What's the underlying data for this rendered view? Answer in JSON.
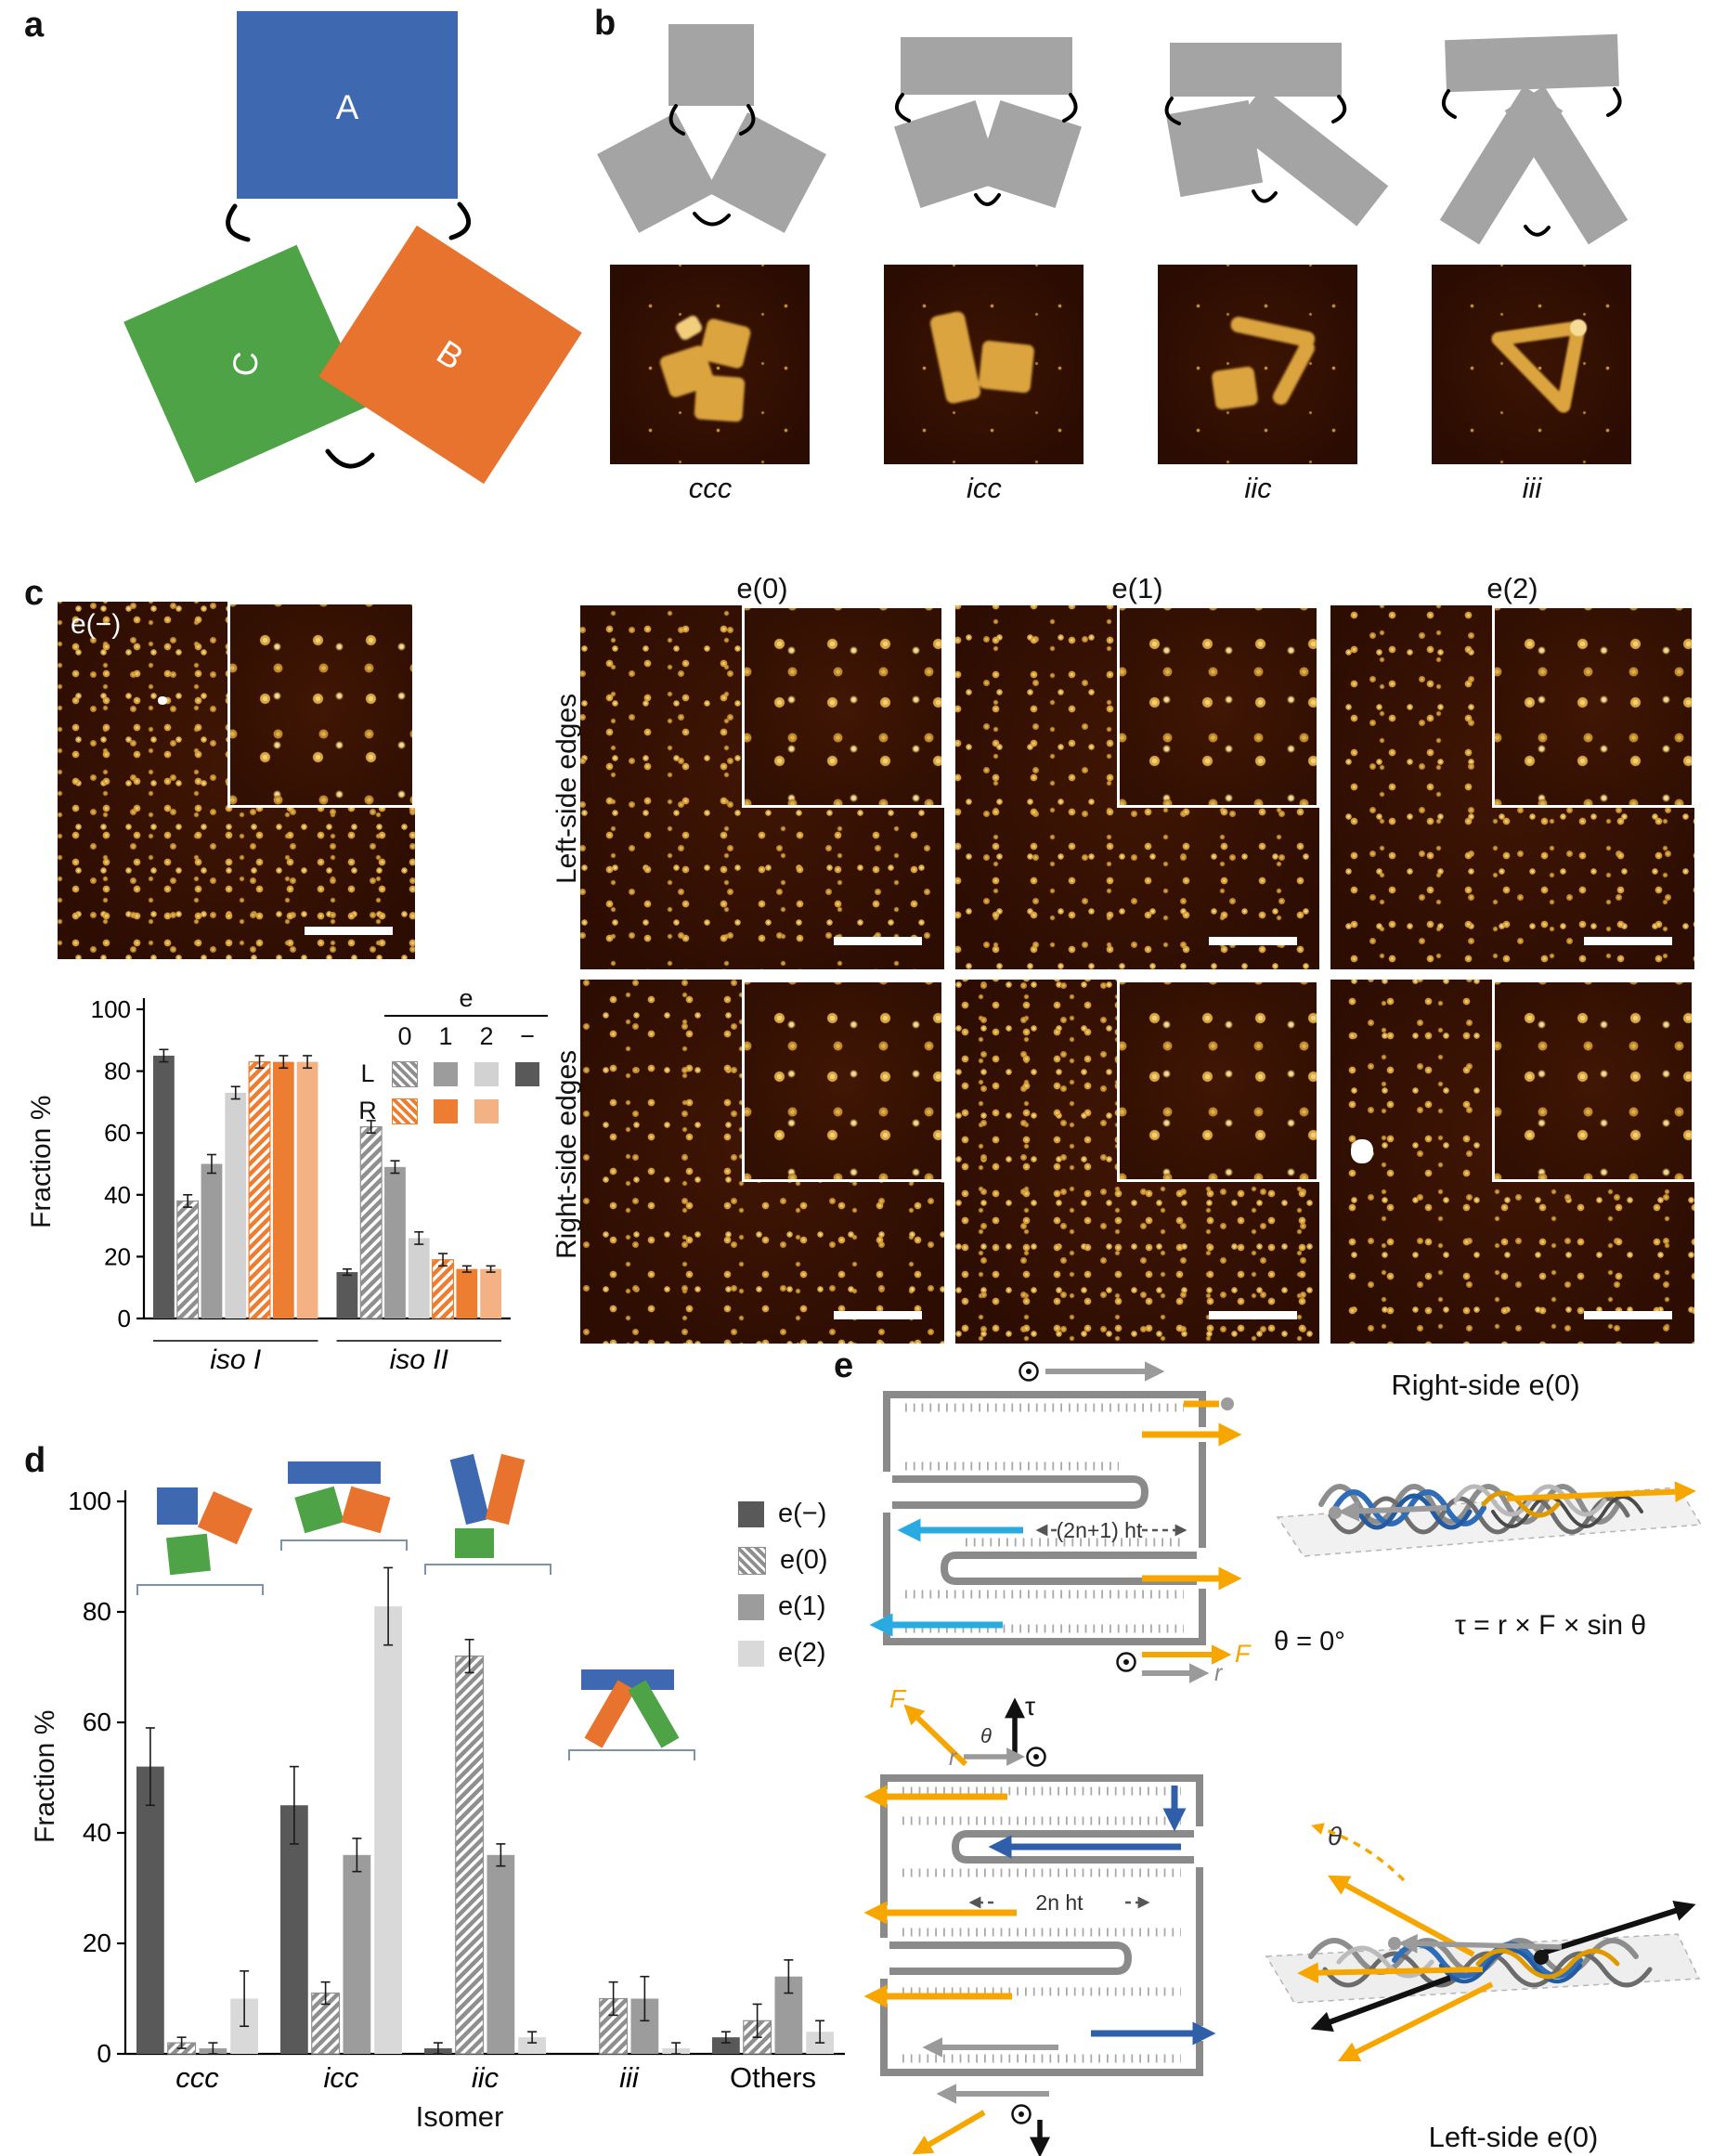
{
  "figure": {
    "panels": [
      "a",
      "b",
      "c",
      "d",
      "e"
    ]
  },
  "panel_a": {
    "monomers": [
      {
        "label": "A",
        "color": "#3e68b0"
      },
      {
        "label": "B",
        "color": "#e8732e"
      },
      {
        "label": "C",
        "color": "#4da345"
      }
    ]
  },
  "panel_b": {
    "isomer_labels": [
      "ccc",
      "icc",
      "iic",
      "iii"
    ]
  },
  "panel_c": {
    "eminus_label": "e(−)",
    "edge_headers": [
      "e(0)",
      "e(1)",
      "e(2)"
    ],
    "row_labels": [
      "Left-side edges",
      "Right-side edges"
    ],
    "legend": {
      "title": "e",
      "columns": [
        "0",
        "1",
        "2",
        "−"
      ],
      "row_left": "L",
      "row_right": "R"
    }
  },
  "panel_e": {
    "right_title": "Right-side e(0)",
    "left_title": "Left-side e(0)",
    "formula": "τ = r × F × sin θ",
    "theta_zero": "θ = 0°",
    "theta": "θ",
    "tau": "τ",
    "force": "F",
    "radius": "r",
    "ht_odd": "(2n+1) ht",
    "ht_even": "2n ht",
    "colors": {
      "scaffold_gray": "#8a8a8a",
      "cyan": "#29abe2",
      "blue": "#2e5fa8",
      "gold": "#f7a600"
    }
  },
  "chart_data": [
    {
      "id": "chart-c",
      "type": "bar",
      "ylabel": "Fraction %",
      "ylim": [
        0,
        100
      ],
      "yticks": [
        0,
        20,
        40,
        60,
        80,
        100
      ],
      "categories": [
        "iso I",
        "iso II"
      ],
      "categories_italic": [
        true,
        true
      ],
      "legend_position": "top-right",
      "series": [
        {
          "name": "e(−)",
          "color": "#595959",
          "hatch": false,
          "values": [
            85,
            15
          ],
          "errors": [
            2,
            1
          ]
        },
        {
          "name": "L e(0)",
          "color": "#8f8f8f",
          "hatch": true,
          "values": [
            38,
            62
          ],
          "errors": [
            2,
            2
          ]
        },
        {
          "name": "L e(1)",
          "color": "#9c9c9c",
          "hatch": false,
          "values": [
            50,
            49
          ],
          "errors": [
            3,
            2
          ]
        },
        {
          "name": "L e(2)",
          "color": "#d2d2d2",
          "hatch": false,
          "values": [
            73,
            26
          ],
          "errors": [
            2,
            2
          ]
        },
        {
          "name": "R e(0)",
          "color": "#ed7d31",
          "hatch": true,
          "values": [
            83,
            19
          ],
          "errors": [
            2,
            2
          ]
        },
        {
          "name": "R e(1)",
          "color": "#ed7d31",
          "hatch": false,
          "values": [
            83,
            16
          ],
          "errors": [
            2,
            1
          ]
        },
        {
          "name": "R e(2)",
          "color": "#f4b183",
          "hatch": false,
          "values": [
            83,
            16
          ],
          "errors": [
            2,
            1
          ]
        }
      ]
    },
    {
      "id": "chart-d",
      "type": "bar",
      "xlabel": "Isomer",
      "ylabel": "Fraction %",
      "ylim": [
        0,
        100
      ],
      "yticks": [
        0,
        20,
        40,
        60,
        80,
        100
      ],
      "categories": [
        "ccc",
        "icc",
        "iic",
        "iii",
        "Others"
      ],
      "categories_italic": [
        true,
        true,
        true,
        true,
        false
      ],
      "legend_position": "top-right",
      "series": [
        {
          "name": "e(−)",
          "color": "#595959",
          "hatch": false,
          "values": [
            52,
            45,
            1,
            0,
            3
          ],
          "errors": [
            7,
            7,
            1,
            0,
            1
          ]
        },
        {
          "name": "e(0)",
          "color": "#8f8f8f",
          "hatch": true,
          "values": [
            2,
            11,
            72,
            10,
            6
          ],
          "errors": [
            1,
            2,
            3,
            3,
            3
          ]
        },
        {
          "name": "e(1)",
          "color": "#9c9c9c",
          "hatch": false,
          "values": [
            1,
            36,
            36,
            10,
            14
          ],
          "errors": [
            1,
            3,
            2,
            4,
            3
          ]
        },
        {
          "name": "e(2)",
          "color": "#d9d9d9",
          "hatch": false,
          "values": [
            10,
            81,
            3,
            1,
            4
          ],
          "errors": [
            5,
            7,
            1,
            1,
            2
          ]
        }
      ]
    }
  ]
}
